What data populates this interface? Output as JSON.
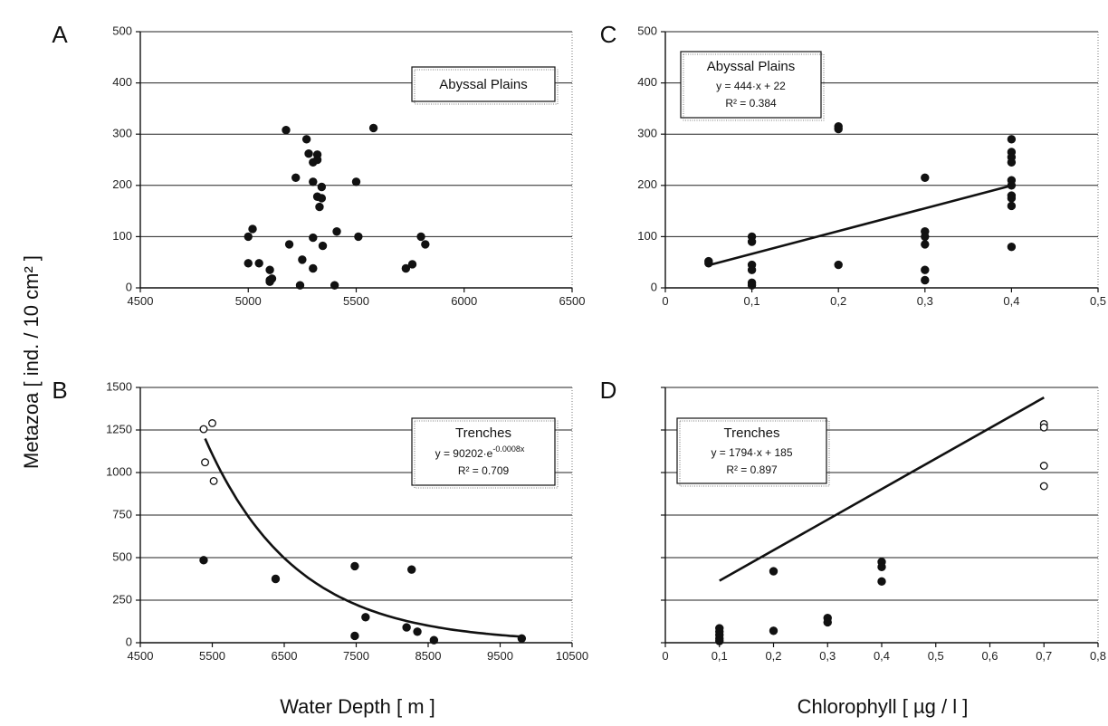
{
  "figure": {
    "y_axis_title": "Metazoa  [ ind. / 10 cm² ]",
    "x_axis_title_left": "Water Depth  [ m ]",
    "x_axis_title_right": "Chlorophyll  [ µg / l ]"
  },
  "chart_data": [
    {
      "panel": "A",
      "type": "scatter",
      "xlim": [
        4500,
        6500
      ],
      "ylim": [
        0,
        500
      ],
      "xticks": [
        "4500",
        "5000",
        "5500",
        "6000",
        "6500"
      ],
      "xtick_values": [
        4500,
        5000,
        5500,
        6000,
        6500
      ],
      "yticks": [
        "0",
        "100",
        "200",
        "300",
        "400",
        "500"
      ],
      "ytick_values": [
        0,
        100,
        200,
        300,
        400,
        500
      ],
      "grid": "horizontal",
      "legend_placement": "top-right",
      "legend_lines": [
        "Abyssal Plains"
      ],
      "series": [
        {
          "marker": "filled",
          "points": [
            [
              5000,
              100
            ],
            [
              5000,
              48
            ],
            [
              5020,
              115
            ],
            [
              5050,
              48
            ],
            [
              5100,
              35
            ],
            [
              5100,
              15
            ],
            [
              5100,
              12
            ],
            [
              5110,
              18
            ],
            [
              5175,
              308
            ],
            [
              5190,
              85
            ],
            [
              5220,
              215
            ],
            [
              5240,
              5
            ],
            [
              5250,
              55
            ],
            [
              5270,
              290
            ],
            [
              5280,
              262
            ],
            [
              5300,
              245
            ],
            [
              5300,
              207
            ],
            [
              5300,
              98
            ],
            [
              5300,
              38
            ],
            [
              5320,
              260
            ],
            [
              5320,
              250
            ],
            [
              5320,
              178
            ],
            [
              5330,
              158
            ],
            [
              5340,
              197
            ],
            [
              5340,
              175
            ],
            [
              5345,
              82
            ],
            [
              5400,
              5
            ],
            [
              5410,
              110
            ],
            [
              5500,
              207
            ],
            [
              5510,
              100
            ],
            [
              5580,
              312
            ],
            [
              5730,
              38
            ],
            [
              5760,
              46
            ],
            [
              5800,
              100
            ],
            [
              5820,
              85
            ]
          ]
        }
      ]
    },
    {
      "panel": "B",
      "type": "scatter",
      "xlim": [
        4500,
        10500
      ],
      "ylim": [
        0,
        1500
      ],
      "xticks": [
        "4500",
        "5500",
        "6500",
        "7500",
        "8500",
        "9500",
        "10500"
      ],
      "xtick_values": [
        4500,
        5500,
        6500,
        7500,
        8500,
        9500,
        10500
      ],
      "yticks": [
        "0",
        "250",
        "500",
        "750",
        "1000",
        "1250",
        "1500"
      ],
      "ytick_values": [
        0,
        250,
        500,
        750,
        1000,
        1250,
        1500
      ],
      "grid": "horizontal",
      "legend_placement": "top-right",
      "legend_lines": [
        "Trenches",
        "y = 90202·e",
        "-0.0008x",
        "R² = 0.709"
      ],
      "fit": {
        "kind": "exp",
        "a": 90202,
        "b": -0.0008,
        "x_range": [
          5400,
          9800
        ]
      },
      "series": [
        {
          "marker": "open",
          "points": [
            [
              5380,
              1255
            ],
            [
              5500,
              1290
            ],
            [
              5400,
              1060
            ],
            [
              5520,
              950
            ]
          ]
        },
        {
          "marker": "filled",
          "points": [
            [
              5380,
              485
            ],
            [
              6380,
              375
            ],
            [
              7480,
              450
            ],
            [
              7480,
              40
            ],
            [
              7630,
              150
            ],
            [
              8200,
              90
            ],
            [
              8270,
              430
            ],
            [
              8350,
              65
            ],
            [
              8580,
              15
            ],
            [
              9800,
              25
            ]
          ]
        }
      ]
    },
    {
      "panel": "C",
      "type": "scatter",
      "xlim": [
        0,
        0.5
      ],
      "ylim": [
        0,
        500
      ],
      "xticks": [
        "0",
        "0,1",
        "0,2",
        "0,3",
        "0,4",
        "0,5"
      ],
      "xtick_values": [
        0,
        0.1,
        0.2,
        0.3,
        0.4,
        0.5
      ],
      "yticks": [
        "0",
        "100",
        "200",
        "300",
        "400",
        "500"
      ],
      "ytick_values": [
        0,
        100,
        200,
        300,
        400,
        500
      ],
      "grid": "horizontal",
      "legend_placement": "top-left",
      "legend_lines": [
        "Abyssal Plains",
        "y = 444·x + 22",
        "R² = 0.384"
      ],
      "fit": {
        "kind": "linear",
        "slope": 444,
        "intercept": 22,
        "x_range": [
          0.05,
          0.4
        ]
      },
      "series": [
        {
          "marker": "filled",
          "points": [
            [
              0.05,
              52
            ],
            [
              0.05,
              48
            ],
            [
              0.1,
              100
            ],
            [
              0.1,
              90
            ],
            [
              0.1,
              45
            ],
            [
              0.1,
              35
            ],
            [
              0.1,
              10
            ],
            [
              0.1,
              5
            ],
            [
              0.2,
              315
            ],
            [
              0.2,
              310
            ],
            [
              0.2,
              45
            ],
            [
              0.3,
              215
            ],
            [
              0.3,
              110
            ],
            [
              0.3,
              100
            ],
            [
              0.3,
              85
            ],
            [
              0.3,
              35
            ],
            [
              0.3,
              15
            ],
            [
              0.4,
              290
            ],
            [
              0.4,
              265
            ],
            [
              0.4,
              255
            ],
            [
              0.4,
              245
            ],
            [
              0.4,
              210
            ],
            [
              0.4,
              200
            ],
            [
              0.4,
              180
            ],
            [
              0.4,
              175
            ],
            [
              0.4,
              160
            ],
            [
              0.4,
              80
            ]
          ]
        }
      ]
    },
    {
      "panel": "D",
      "type": "scatter",
      "xlim": [
        0,
        0.8
      ],
      "ylim": [
        0,
        1500
      ],
      "xticks": [
        "0",
        "0,1",
        "0,2",
        "0,3",
        "0,4",
        "0,5",
        "0,6",
        "0,7",
        "0,8"
      ],
      "xtick_values": [
        0,
        0.1,
        0.2,
        0.3,
        0.4,
        0.5,
        0.6,
        0.7,
        0.8
      ],
      "yticks": [
        "",
        "",
        "",
        "",
        "",
        "",
        ""
      ],
      "ytick_values": [
        0,
        250,
        500,
        750,
        1000,
        1250,
        1500
      ],
      "grid": "horizontal",
      "legend_placement": "top-left",
      "legend_lines": [
        "Trenches",
        "y = 1794·x + 185",
        "R² = 0.897"
      ],
      "fit": {
        "kind": "linear",
        "slope": 1794,
        "intercept": 185,
        "x_range": [
          0.1,
          0.7
        ]
      },
      "series": [
        {
          "marker": "open",
          "points": [
            [
              0.7,
              1285
            ],
            [
              0.7,
              1265
            ],
            [
              0.7,
              1040
            ],
            [
              0.7,
              920
            ]
          ]
        },
        {
          "marker": "filled",
          "points": [
            [
              0.1,
              85
            ],
            [
              0.1,
              65
            ],
            [
              0.1,
              45
            ],
            [
              0.1,
              25
            ],
            [
              0.1,
              10
            ],
            [
              0.2,
              420
            ],
            [
              0.2,
              70
            ],
            [
              0.3,
              145
            ],
            [
              0.3,
              120
            ],
            [
              0.4,
              475
            ],
            [
              0.4,
              445
            ],
            [
              0.4,
              360
            ]
          ]
        }
      ]
    }
  ]
}
